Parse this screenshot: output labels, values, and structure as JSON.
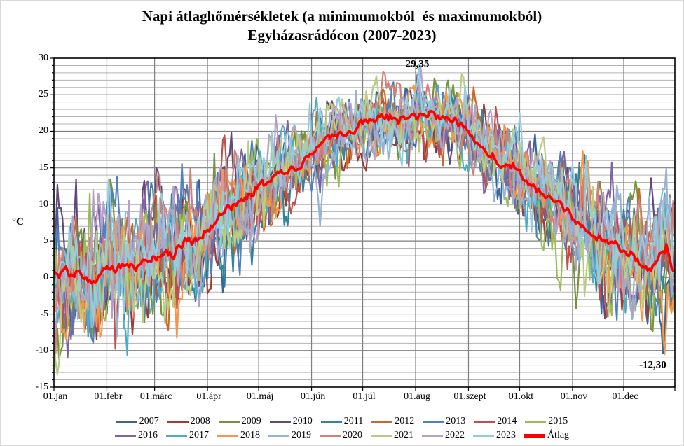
{
  "title": {
    "line1": "Napi átlaghőmérsékletek (a minimumokból  és maximumokból)",
    "line2": "Egyházasrádócon (2007-2023)"
  },
  "y_axis": {
    "title": "°C",
    "ticks": [
      "30",
      "25",
      "20",
      "15",
      "10",
      "5",
      "0",
      "-5",
      "-10",
      "-15"
    ],
    "min": -15,
    "max": 30,
    "major_step": 5,
    "minor_step": 1
  },
  "x_axis": {
    "labels": [
      "01.jan",
      "01.febr",
      "01.márc",
      "01.ápr",
      "01.máj",
      "01.jún",
      "01.júl",
      "01.aug",
      "01.szept",
      "01.okt",
      "01.nov",
      "01.dec"
    ],
    "month_start_days": [
      0,
      31,
      59,
      90,
      120,
      151,
      181,
      212,
      243,
      273,
      304,
      334
    ],
    "days_in_year": 365
  },
  "annotations": [
    {
      "text": "29,35",
      "day": 213,
      "value": 29.15
    },
    {
      "text": "-12,30",
      "day": 351,
      "value": -12.0
    }
  ],
  "colors": {
    "grid_minor": "#b3b3b3",
    "grid_major": "#7f7f7f",
    "grid_vertical": "#7f7f7f",
    "plot_border": "#000000",
    "average": "#ff0000"
  },
  "chart_data": {
    "type": "line",
    "title": "Napi átlaghőmérsékletek (a minimumokból és maximumokból) Egyházasrádócon (2007-2023)",
    "xlabel": "",
    "ylabel": "°C",
    "ylim": [
      -15,
      30
    ],
    "x_unit": "day of year (01.jan – 31.dec)",
    "grid": true,
    "legend_position": "bottom",
    "extremes": {
      "max_label": "29,35",
      "max_value": 29.35,
      "min_label": "-12,30",
      "min_value": -12.3
    },
    "series": [
      {
        "name": "2007",
        "color": "#3a6598"
      },
      {
        "name": "2008",
        "color": "#9e3d38"
      },
      {
        "name": "2009",
        "color": "#76923c"
      },
      {
        "name": "2010",
        "color": "#604a7b"
      },
      {
        "name": "2011",
        "color": "#31849b"
      },
      {
        "name": "2012",
        "color": "#c96a28"
      },
      {
        "name": "2013",
        "color": "#4f81bd"
      },
      {
        "name": "2014",
        "color": "#c0504d"
      },
      {
        "name": "2015",
        "color": "#9bbb59"
      },
      {
        "name": "2016",
        "color": "#8064a2"
      },
      {
        "name": "2017",
        "color": "#4bacc6"
      },
      {
        "name": "2018",
        "color": "#f79646"
      },
      {
        "name": "2019",
        "color": "#95b3d7"
      },
      {
        "name": "2020",
        "color": "#d08077"
      },
      {
        "name": "2021",
        "color": "#b9cd82"
      },
      {
        "name": "2022",
        "color": "#b3a2c7"
      },
      {
        "name": "2023",
        "color": "#93cddd"
      }
    ],
    "average_series": {
      "name": "Átlag",
      "color": "#ff0000",
      "points": [
        [
          0,
          0.8
        ],
        [
          6,
          1.3
        ],
        [
          10,
          0.3
        ],
        [
          14,
          0.8
        ],
        [
          18,
          -0.6
        ],
        [
          22,
          -1.4
        ],
        [
          26,
          -0.2
        ],
        [
          31,
          1.5
        ],
        [
          36,
          1.0
        ],
        [
          41,
          1.9
        ],
        [
          45,
          1.2
        ],
        [
          50,
          1.7
        ],
        [
          55,
          2.2
        ],
        [
          59,
          2.6
        ],
        [
          64,
          3.3
        ],
        [
          70,
          3.1
        ],
        [
          75,
          4.5
        ],
        [
          80,
          5.1
        ],
        [
          85,
          5.6
        ],
        [
          90,
          6.6
        ],
        [
          95,
          7.8
        ],
        [
          100,
          8.9
        ],
        [
          105,
          9.5
        ],
        [
          110,
          10.1
        ],
        [
          115,
          11.0
        ],
        [
          120,
          12.4
        ],
        [
          125,
          13.2
        ],
        [
          130,
          13.9
        ],
        [
          135,
          14.3
        ],
        [
          140,
          14.9
        ],
        [
          145,
          15.3
        ],
        [
          151,
          17.0
        ],
        [
          156,
          18.2
        ],
        [
          161,
          18.9
        ],
        [
          166,
          19.4
        ],
        [
          171,
          19.7
        ],
        [
          176,
          20.3
        ],
        [
          181,
          21.0
        ],
        [
          186,
          21.3
        ],
        [
          191,
          21.6
        ],
        [
          196,
          21.9
        ],
        [
          201,
          21.7
        ],
        [
          206,
          22.0
        ],
        [
          212,
          22.4
        ],
        [
          218,
          22.1
        ],
        [
          224,
          21.9
        ],
        [
          230,
          21.6
        ],
        [
          236,
          21.2
        ],
        [
          243,
          19.7
        ],
        [
          248,
          18.4
        ],
        [
          253,
          17.2
        ],
        [
          258,
          16.1
        ],
        [
          263,
          15.2
        ],
        [
          268,
          14.7
        ],
        [
          273,
          14.4
        ],
        [
          278,
          13.2
        ],
        [
          283,
          12.5
        ],
        [
          288,
          11.4
        ],
        [
          293,
          10.6
        ],
        [
          298,
          9.9
        ],
        [
          304,
          8.3
        ],
        [
          309,
          7.2
        ],
        [
          314,
          6.3
        ],
        [
          319,
          5.4
        ],
        [
          324,
          4.8
        ],
        [
          329,
          4.0
        ],
        [
          334,
          3.4
        ],
        [
          339,
          2.8
        ],
        [
          344,
          2.2
        ],
        [
          348,
          1.7
        ],
        [
          352,
          1.9
        ],
        [
          356,
          3.2
        ],
        [
          359,
          3.9
        ],
        [
          361,
          2.4
        ],
        [
          363,
          0.8
        ],
        [
          364,
          1.1
        ]
      ]
    }
  }
}
